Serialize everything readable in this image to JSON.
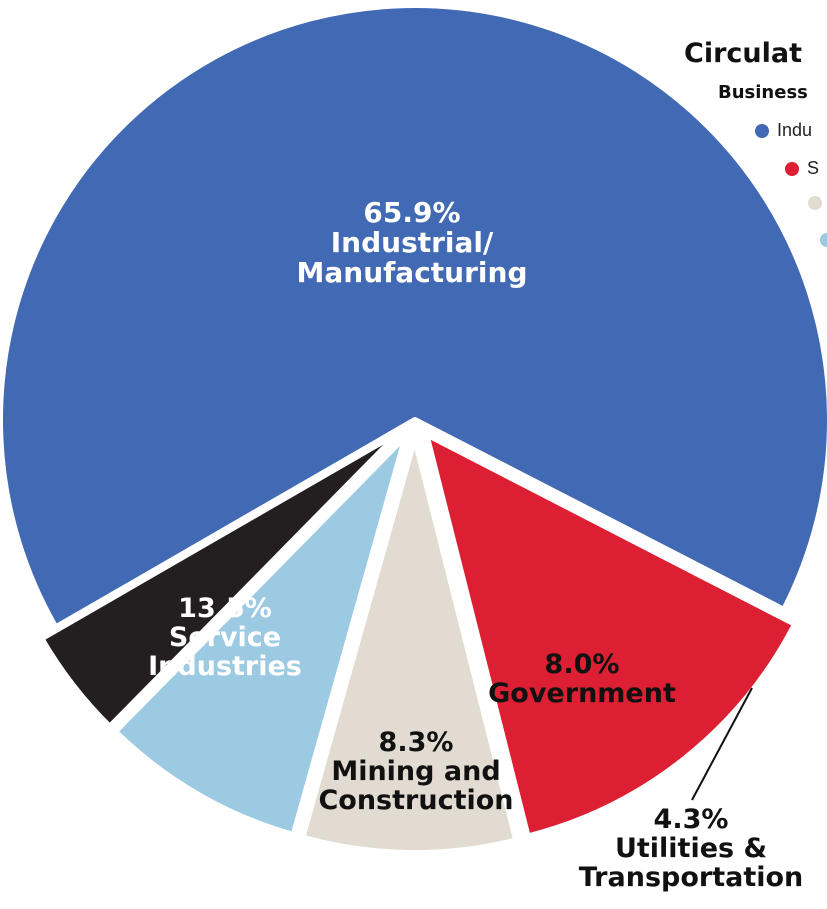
{
  "legend": {
    "title": "Circulat",
    "subtitle": "Business",
    "items": [
      {
        "label": "Indu",
        "color": "#4169b4"
      },
      {
        "label": "S",
        "color": "#dc1f33"
      },
      {
        "label": "",
        "color": "#e2dbd1"
      },
      {
        "label": "",
        "color": "#9ccae3"
      }
    ]
  },
  "chart_data": {
    "type": "pie",
    "slices": [
      {
        "value": 65.9,
        "pct": "65.9%",
        "label_lines": [
          "Industrial/",
          "Manufacturing"
        ],
        "color": "#4169b4"
      },
      {
        "value": 13.5,
        "pct": "13.5%",
        "label_lines": [
          "Service",
          "Industries"
        ],
        "color": "#dc1f33"
      },
      {
        "value": 8.3,
        "pct": "8.3%",
        "label_lines": [
          "Mining and",
          "Construction"
        ],
        "color": "#e2dbd1"
      },
      {
        "value": 8.0,
        "pct": "8.0%",
        "label_lines": [
          "Government"
        ],
        "color": "#9ccae3"
      },
      {
        "value": 4.3,
        "pct": "4.3%",
        "label_lines": [
          "Utilities &",
          "Transportation"
        ],
        "color": "#231f20"
      }
    ]
  }
}
